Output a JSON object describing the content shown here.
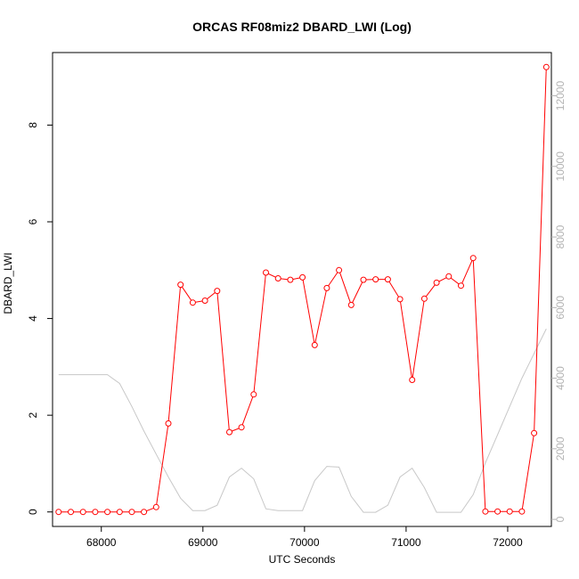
{
  "chart_data": {
    "type": "line",
    "title": "ORCAS RF08miz2 DBARD_LWI (Log)",
    "xlabel": "UTC Seconds",
    "ylabel": "DBARD_LWI",
    "xlim": [
      67520,
      72430
    ],
    "ylim": [
      -0.3,
      9.5
    ],
    "y2lim": [
      -200,
      13225
    ],
    "xticks": [
      68000,
      69000,
      70000,
      71000,
      72000
    ],
    "yticks": [
      0,
      2,
      4,
      6,
      8
    ],
    "y2ticks": [
      0,
      2000,
      4000,
      6000,
      8000,
      10000,
      12000
    ],
    "grid": false,
    "series": [
      {
        "color": "#ff0000",
        "marker": "open-circle",
        "x": [
          67580,
          67700,
          67820,
          67940,
          68060,
          68180,
          68300,
          68420,
          68540,
          68660,
          68780,
          68900,
          69020,
          69140,
          69260,
          69380,
          69500,
          69620,
          69740,
          69860,
          69980,
          70100,
          70220,
          70340,
          70460,
          70580,
          70700,
          70820,
          70940,
          71060,
          71180,
          71300,
          71420,
          71540,
          71660,
          71780,
          71900,
          72020,
          72140,
          72260,
          72380
        ],
        "y": [
          0,
          0,
          0,
          0,
          0,
          0,
          0,
          0,
          0.1,
          1.83,
          4.7,
          4.33,
          4.37,
          4.57,
          1.65,
          1.75,
          2.43,
          4.95,
          4.83,
          4.8,
          4.85,
          3.45,
          4.63,
          5.0,
          4.28,
          4.8,
          4.81,
          4.81,
          4.4,
          2.73,
          4.41,
          4.74,
          4.87,
          4.68,
          5.25,
          0.01,
          0.01,
          0.01,
          0.01,
          1.63,
          9.2
        ]
      },
      {
        "color": "#c8c8c8",
        "axis": "right",
        "x": [
          67580,
          67700,
          67820,
          67940,
          68060,
          68180,
          68300,
          68420,
          68540,
          68660,
          68780,
          68900,
          69020,
          69140,
          69260,
          69380,
          69500,
          69620,
          69740,
          69860,
          69980,
          70100,
          70220,
          70340,
          70460,
          70580,
          70700,
          70820,
          70940,
          71060,
          71180,
          71300,
          71420,
          71540,
          71660,
          71780,
          71900,
          72020,
          72140,
          72260,
          72380
        ],
        "y": [
          4100,
          4100,
          4100,
          4100,
          4100,
          3850,
          3200,
          2500,
          1850,
          1200,
          600,
          250,
          250,
          400,
          1200,
          1450,
          1150,
          300,
          250,
          250,
          250,
          1100,
          1500,
          1480,
          650,
          200,
          200,
          400,
          1200,
          1450,
          900,
          200,
          200,
          200,
          700,
          1600,
          2400,
          3200,
          4000,
          4700,
          5400
        ]
      }
    ]
  }
}
